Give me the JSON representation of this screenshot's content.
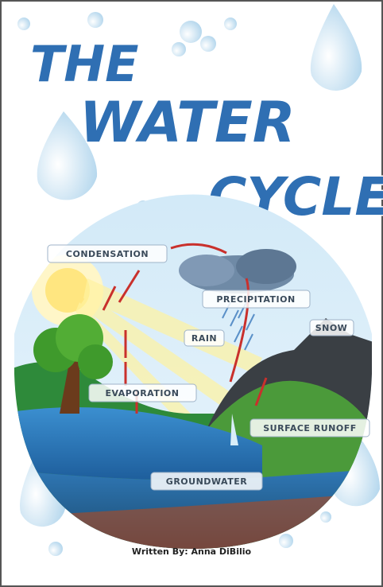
{
  "cover": {
    "title_lines": [
      "THE",
      "WATER",
      "CYCLE"
    ],
    "labels": {
      "condensation": "CONDENSATION",
      "precipitation": "PRECIPITATION",
      "rain": "RAIN",
      "snow": "SNOW",
      "evaporation": "EVAPORATION",
      "surface_runoff": "SURFACE RUNOFF",
      "groundwater": "GROUNDWATER"
    },
    "author": "Written By: Anna DiBilio"
  }
}
